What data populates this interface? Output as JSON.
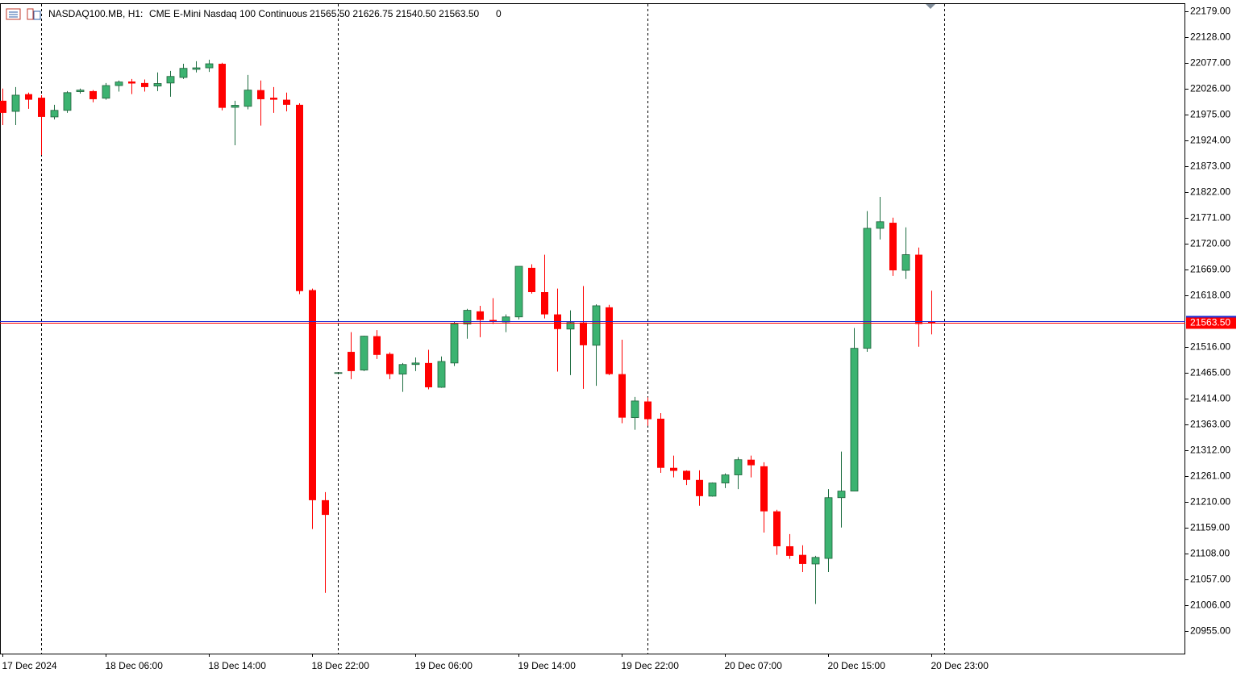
{
  "chart_data": {
    "type": "candlestick",
    "title": "NASDAQ100.MB, H1:",
    "subtitle": "CME E-Mini Nasdaq 100 Continuous",
    "ohlc_label": "21565.50 21626.75 21540.50 21563.50",
    "volume": 0,
    "up_color": "#3cb371",
    "down_color": "#ff0000",
    "categories": [
      "17 Dec 2024",
      null,
      null,
      null,
      null,
      null,
      null,
      null,
      "18 Dec 06:00",
      null,
      null,
      null,
      null,
      null,
      null,
      null,
      "18 Dec 14:00",
      null,
      null,
      null,
      null,
      null,
      null,
      null,
      "18 Dec 22:00",
      null,
      null,
      null,
      null,
      null,
      null,
      null,
      "19 Dec 06:00",
      null,
      null,
      null,
      null,
      null,
      null,
      null,
      "19 Dec 14:00",
      null,
      null,
      null,
      null,
      null,
      null,
      null,
      "19 Dec 22:00",
      null,
      null,
      null,
      null,
      null,
      null,
      null,
      "20 Dec 07:00",
      null,
      null,
      null,
      null,
      null,
      null,
      null,
      "20 Dec 15:00",
      null,
      null,
      null,
      null,
      null,
      null,
      null,
      "20 Dec 23:00"
    ],
    "open": [
      22002,
      21981,
      22015,
      22008,
      21970,
      21983,
      22020,
      22021,
      22007,
      22032,
      22040,
      22037,
      22031,
      22037,
      22048,
      22064,
      22067,
      22075,
      21989,
      21991,
      22023,
      22008,
      22004,
      21994,
      21628,
      21213,
      21465,
      21506,
      21470,
      21537,
      21502,
      21462,
      21481,
      21484,
      21436,
      21484,
      21561,
      21586,
      21569,
      21565,
      21575,
      21672,
      21624,
      21580,
      21551,
      21564,
      21519,
      21594,
      21462,
      21376,
      21408,
      21374,
      21277,
      21271,
      21253,
      21221,
      21247,
      21263,
      21293,
      21280,
      21191,
      21122,
      21105,
      21087,
      21098,
      21218,
      21231,
      21513,
      21750,
      21761,
      21667,
      21698,
      21565.5
    ],
    "high": [
      22026,
      22029,
      22018,
      22013,
      21994,
      22021,
      22026,
      22023,
      22037,
      22042,
      22045,
      22044,
      22058,
      22061,
      22075,
      22080,
      22083,
      22077,
      22002,
      22053,
      22042,
      22029,
      22018,
      21997,
      21631,
      21229,
      21465,
      21545,
      21538,
      21549,
      21505,
      21484,
      21495,
      21510,
      21497,
      21565,
      21591,
      21597,
      21612,
      21580,
      21675,
      21679,
      21698,
      21631,
      21588,
      21636,
      21600,
      21599,
      21530,
      21417,
      21416,
      21385,
      21301,
      21272,
      21272,
      21248,
      21266,
      21298,
      21301,
      21288,
      21194,
      21146,
      21124,
      21103,
      21235,
      21309,
      21553,
      21784,
      21812,
      21771,
      21752,
      21712,
      21626.75
    ],
    "low": [
      21954,
      21954,
      21986,
      21895,
      21965,
      21978,
      22016,
      21999,
      22004,
      22020,
      22015,
      22020,
      22021,
      22010,
      22045,
      22058,
      22059,
      21983,
      21914,
      21985,
      21953,
      21978,
      21981,
      21620,
      21156,
      21030,
      21465,
      21452,
      21468,
      21492,
      21452,
      21427,
      21468,
      21432,
      21435,
      21478,
      21532,
      21535,
      21561,
      21545,
      21570,
      21621,
      21572,
      21467,
      21460,
      21433,
      21439,
      21460,
      21365,
      21352,
      21360,
      21267,
      21258,
      21243,
      21202,
      21220,
      21237,
      21235,
      21258,
      21149,
      21105,
      21097,
      21071,
      21008,
      21071,
      21159,
      21231,
      21506,
      21728,
      21656,
      21650,
      21516,
      21540.5
    ],
    "close": [
      21978,
      22013,
      22004,
      21970,
      21983,
      22018,
      22023,
      22005,
      22032,
      22039,
      22036,
      22029,
      22036,
      22050,
      22066,
      22067,
      22075,
      21988,
      21993,
      22023,
      22005,
      22004,
      21994,
      21626,
      21213,
      21184,
      21465,
      21468,
      21537,
      21500,
      21462,
      21481,
      21484,
      21436,
      21487,
      21561,
      21588,
      21569,
      21565,
      21575,
      21675,
      21624,
      21580,
      21551,
      21564,
      21519,
      21597,
      21462,
      21376,
      21409,
      21373,
      21277,
      21271,
      21253,
      21221,
      21247,
      21263,
      21293,
      21282,
      21191,
      21122,
      21103,
      21087,
      21100,
      21218,
      21231,
      21513,
      21750,
      21763,
      21667,
      21698,
      21561,
      21563.5
    ],
    "ylim": [
      20910,
      22193
    ],
    "yticks": [
      {
        "value": 22179,
        "label": "22179.00"
      },
      {
        "value": 22128,
        "label": "22128.00"
      },
      {
        "value": 22077,
        "label": "22077.00"
      },
      {
        "value": 22026,
        "label": "22026.00"
      },
      {
        "value": 21975,
        "label": "21975.00"
      },
      {
        "value": 21924,
        "label": "21924.00"
      },
      {
        "value": 21873,
        "label": "21873.00"
      },
      {
        "value": 21822,
        "label": "21822.00"
      },
      {
        "value": 21771,
        "label": "21771.00"
      },
      {
        "value": 21720,
        "label": "21720.00"
      },
      {
        "value": 21669,
        "label": "21669.00"
      },
      {
        "value": 21618,
        "label": "21618.00"
      },
      {
        "value": 21516,
        "label": "21516.00"
      },
      {
        "value": 21465,
        "label": "21465.00"
      },
      {
        "value": 21414,
        "label": "21414.00"
      },
      {
        "value": 21363,
        "label": "21363.00"
      },
      {
        "value": 21312,
        "label": "21312.00"
      },
      {
        "value": 21261,
        "label": "21261.00"
      },
      {
        "value": 21210,
        "label": "21210.00"
      },
      {
        "value": 21159,
        "label": "21159.00"
      },
      {
        "value": 21108,
        "label": "21108.00"
      },
      {
        "value": 21057,
        "label": "21057.00"
      },
      {
        "value": 21006,
        "label": "21006.00"
      },
      {
        "value": 20955,
        "label": "20955.00"
      }
    ],
    "last_price": {
      "value": 21563.5,
      "label": "21563.50",
      "color": "#ff0000"
    },
    "grid": false
  }
}
